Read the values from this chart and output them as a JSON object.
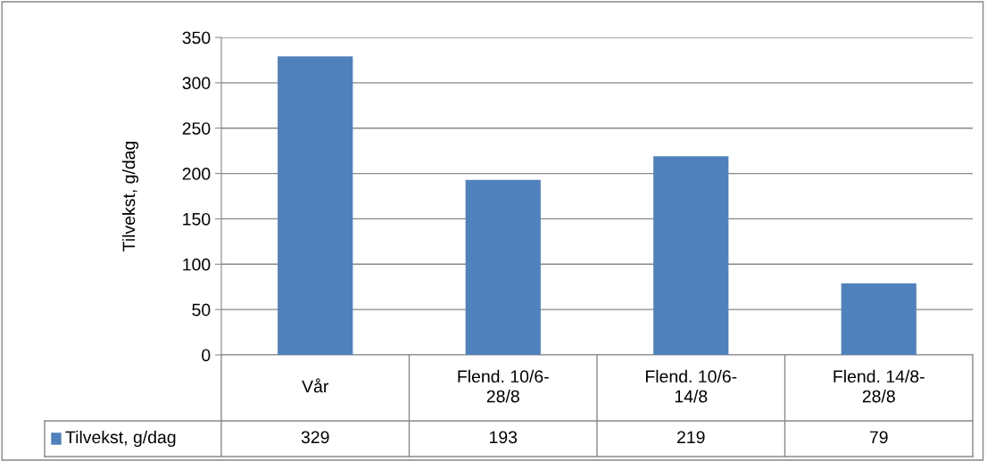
{
  "chart_data": {
    "type": "bar",
    "ylabel": "Tilvekst, g/dag",
    "categories": [
      "Vår",
      "Flend. 10/6-\n28/8",
      "Flend. 10/6-\n14/8",
      "Flend. 14/8-\n28/8"
    ],
    "series": [
      {
        "name": "Tilvekst, g/dag",
        "color": "#4f81bd",
        "values": [
          329,
          193,
          219,
          79
        ]
      }
    ],
    "ylim": [
      0,
      350
    ],
    "yticks": [
      0,
      50,
      100,
      150,
      200,
      250,
      300,
      350
    ],
    "grid": "y",
    "data_labels": true,
    "legend": "bottom"
  }
}
